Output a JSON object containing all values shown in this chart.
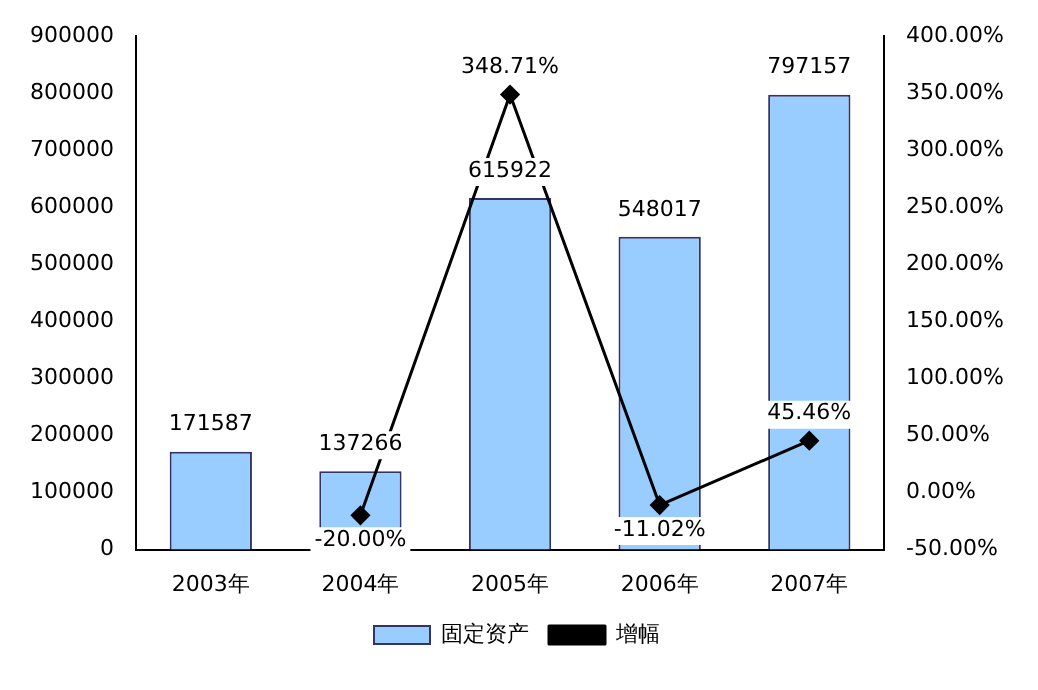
{
  "chart_data": {
    "type": "bar",
    "categories": [
      "2003年",
      "2004年",
      "2005年",
      "2006年",
      "2007年"
    ],
    "series": [
      {
        "name": "固定资产",
        "color": "#99ccff",
        "values": [
          171587,
          137266,
          615922,
          548017,
          797157
        ],
        "value_labels": [
          "171587",
          "137266",
          "615922",
          "548017",
          "797157"
        ]
      },
      {
        "name": "增幅",
        "type": "line",
        "axis": "y2",
        "color": "#000000",
        "values": [
          null,
          -20.0,
          348.71,
          -11.02,
          45.46
        ],
        "value_labels": [
          null,
          "-20.00%",
          "348.71%",
          "-11.02%",
          "45.46%"
        ]
      }
    ],
    "ylim": [
      0,
      900000
    ],
    "yticks": [
      0,
      100000,
      200000,
      300000,
      400000,
      500000,
      600000,
      700000,
      800000,
      900000
    ],
    "y2lim": [
      -50,
      400
    ],
    "y2ticks": [
      {
        "value": -50,
        "label": "-50.00%"
      },
      {
        "value": 0,
        "label": "0.00%"
      },
      {
        "value": 50,
        "label": "50.00%"
      },
      {
        "value": 100,
        "label": "100.00%"
      },
      {
        "value": 150,
        "label": "150.00%"
      },
      {
        "value": 200,
        "label": "200.00%"
      },
      {
        "value": 250,
        "label": "250.00%"
      },
      {
        "value": 300,
        "label": "300.00%"
      },
      {
        "value": 350,
        "label": "350.00%"
      },
      {
        "value": 400,
        "label": "400.00%"
      }
    ],
    "grid": false,
    "legend": "bottom",
    "marker": "diamond",
    "line_style": "solid"
  }
}
